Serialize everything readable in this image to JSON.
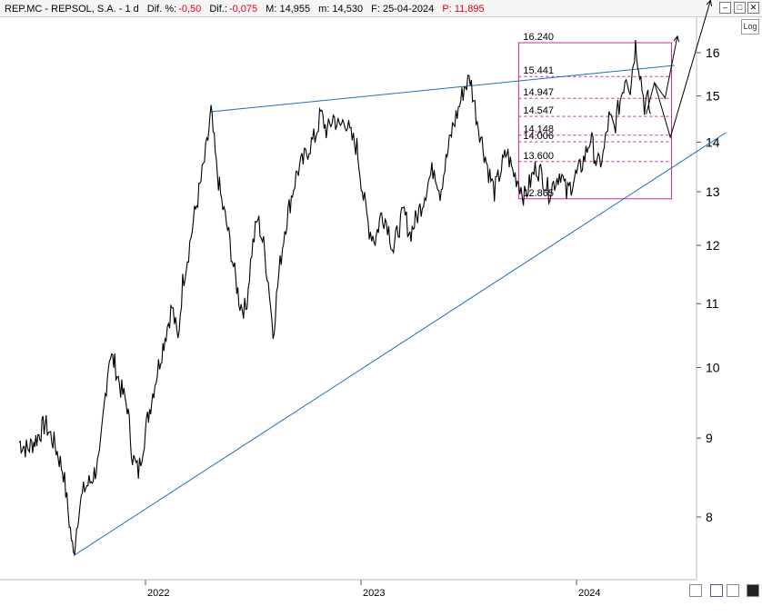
{
  "header": {
    "symbol": "REP.MC - REPSOL, S.A. - 1 d",
    "dif_pct_label": "Dif. %:",
    "dif_pct_value": "-0,50",
    "dif_label": "Dif.:",
    "dif_value": "-0,075",
    "max_label": "M: 14,955",
    "min_label": "m: 14,530",
    "date_label": "F: 25-04-2024",
    "p_label": "P: 11,895",
    "log_button": "Log"
  },
  "colors": {
    "price": "#000000",
    "trendline": "#1f6fbf",
    "fib": "#cc2a9a",
    "accent_red": "#e0001b"
  },
  "chart_data": {
    "type": "line",
    "scale": "log",
    "ylim": [
      7.45,
      16.95
    ],
    "y_ticks": [
      8,
      9,
      10,
      11,
      12,
      13,
      14,
      15,
      16
    ],
    "x_ticks": [
      "2022",
      "2023",
      "2024"
    ],
    "series": [
      {
        "values": [
          [
            "2021-06-01",
            8.95
          ],
          [
            "2021-06-15",
            8.85
          ],
          [
            "2021-07-01",
            9.0
          ],
          [
            "2021-07-15",
            9.2
          ],
          [
            "2021-08-01",
            8.9
          ],
          [
            "2021-08-15",
            8.55
          ],
          [
            "2021-08-25",
            7.95
          ],
          [
            "2021-09-01",
            7.55
          ],
          [
            "2021-09-10",
            8.1
          ],
          [
            "2021-09-20",
            8.35
          ],
          [
            "2021-10-01",
            8.45
          ],
          [
            "2021-10-15",
            8.7
          ],
          [
            "2021-10-25",
            9.6
          ],
          [
            "2021-11-01",
            10.2
          ],
          [
            "2021-11-10",
            10.05
          ],
          [
            "2021-11-20",
            9.7
          ],
          [
            "2021-12-01",
            9.45
          ],
          [
            "2021-12-10",
            8.75
          ],
          [
            "2021-12-20",
            8.55
          ],
          [
            "2022-01-01",
            9.1
          ],
          [
            "2022-01-15",
            9.7
          ],
          [
            "2022-01-25",
            10.1
          ],
          [
            "2022-02-05",
            10.55
          ],
          [
            "2022-02-15",
            10.95
          ],
          [
            "2022-02-25",
            10.4
          ],
          [
            "2022-03-05",
            11.35
          ],
          [
            "2022-03-15",
            11.9
          ],
          [
            "2022-03-25",
            12.55
          ],
          [
            "2022-04-05",
            13.2
          ],
          [
            "2022-04-15",
            13.9
          ],
          [
            "2022-04-22",
            14.65
          ],
          [
            "2022-05-01",
            13.5
          ],
          [
            "2022-05-10",
            12.8
          ],
          [
            "2022-05-20",
            12.3
          ],
          [
            "2022-06-01",
            11.5
          ],
          [
            "2022-06-10",
            11.0
          ],
          [
            "2022-06-20",
            10.9
          ],
          [
            "2022-06-30",
            11.9
          ],
          [
            "2022-07-10",
            12.5
          ],
          [
            "2022-07-20",
            12.0
          ],
          [
            "2022-07-30",
            11.2
          ],
          [
            "2022-08-05",
            10.5
          ],
          [
            "2022-08-15",
            11.5
          ],
          [
            "2022-08-25",
            12.3
          ],
          [
            "2022-09-05",
            12.9
          ],
          [
            "2022-09-15",
            13.4
          ],
          [
            "2022-09-25",
            13.6
          ],
          [
            "2022-10-05",
            13.9
          ],
          [
            "2022-10-15",
            14.1
          ],
          [
            "2022-10-25",
            14.6
          ],
          [
            "2022-11-05",
            14.2
          ],
          [
            "2022-11-15",
            14.55
          ],
          [
            "2022-11-25",
            14.3
          ],
          [
            "2022-12-05",
            14.5
          ],
          [
            "2022-12-15",
            14.1
          ],
          [
            "2022-12-25",
            13.9
          ],
          [
            "2023-01-05",
            12.9
          ],
          [
            "2023-01-15",
            12.3
          ],
          [
            "2023-01-25",
            12.1
          ],
          [
            "2023-02-05",
            12.6
          ],
          [
            "2023-02-15",
            12.4
          ],
          [
            "2023-02-25",
            11.9
          ],
          [
            "2023-03-05",
            12.3
          ],
          [
            "2023-03-15",
            12.6
          ],
          [
            "2023-03-25",
            12.2
          ],
          [
            "2023-04-05",
            12.5
          ],
          [
            "2023-04-15",
            12.8
          ],
          [
            "2023-04-25",
            13.2
          ],
          [
            "2023-05-05",
            13.5
          ],
          [
            "2023-05-15",
            13.0
          ],
          [
            "2023-05-25",
            13.6
          ],
          [
            "2023-06-05",
            14.3
          ],
          [
            "2023-06-15",
            14.7
          ],
          [
            "2023-06-25",
            15.2
          ],
          [
            "2023-07-05",
            15.4
          ],
          [
            "2023-07-15",
            14.6
          ],
          [
            "2023-07-25",
            14.0
          ],
          [
            "2023-08-05",
            13.4
          ],
          [
            "2023-08-15",
            13.0
          ],
          [
            "2023-08-25",
            13.4
          ],
          [
            "2023-09-05",
            13.8
          ],
          [
            "2023-09-15",
            13.4
          ],
          [
            "2023-09-25",
            13.2
          ],
          [
            "2023-10-05",
            12.9
          ],
          [
            "2023-10-15",
            13.2
          ],
          [
            "2023-10-25",
            13.5
          ],
          [
            "2023-11-05",
            13.3
          ],
          [
            "2023-11-15",
            13.0
          ],
          [
            "2023-11-25",
            13.2
          ],
          [
            "2023-12-05",
            13.4
          ],
          [
            "2023-12-15",
            12.95
          ],
          [
            "2023-12-25",
            13.2
          ],
          [
            "2024-01-05",
            13.4
          ],
          [
            "2024-01-15",
            13.7
          ],
          [
            "2024-01-25",
            14.1
          ],
          [
            "2024-02-05",
            13.5
          ],
          [
            "2024-02-15",
            13.7
          ],
          [
            "2024-02-25",
            14.5
          ],
          [
            "2024-03-05",
            14.3
          ],
          [
            "2024-03-15",
            14.9
          ],
          [
            "2024-03-25",
            15.5
          ],
          [
            "2024-04-01",
            15.2
          ],
          [
            "2024-04-10",
            16.2
          ],
          [
            "2024-04-17",
            15.6
          ],
          [
            "2024-04-25",
            14.8
          ],
          [
            "2024-05-01",
            14.9
          ],
          [
            "2024-05-05",
            14.6
          ]
        ]
      }
    ],
    "trendlines": [
      {
        "from": [
          "2021-09-01",
          7.55
        ],
        "to": [
          "2024-09-10",
          14.2
        ]
      },
      {
        "from": [
          "2022-04-22",
          14.65
        ],
        "to": [
          "2024-06-15",
          15.7
        ]
      }
    ],
    "fib_box": {
      "from": "2023-09-25",
      "to": "2024-06-10",
      "top": 16.24,
      "bottom": 12.865
    },
    "fib_levels": [
      {
        "label": "16.240",
        "value": 16.24
      },
      {
        "label": "15.441",
        "value": 15.441
      },
      {
        "label": "14.947",
        "value": 14.947
      },
      {
        "label": "14.547",
        "value": 14.547
      },
      {
        "label": "14.148",
        "value": 14.148
      },
      {
        "label": "14.006",
        "value": 14.006
      },
      {
        "label": "13.600",
        "value": 13.6
      },
      {
        "label": "12.865",
        "value": 12.865
      }
    ],
    "projection_arrows": [
      [
        [
          "2024-04-28",
          14.6
        ],
        [
          "2024-05-12",
          15.3
        ],
        [
          "2024-05-30",
          14.95
        ],
        [
          "2024-06-20",
          16.4
        ]
      ],
      [
        [
          "2024-05-12",
          15.3
        ],
        [
          "2024-06-08",
          14.1
        ],
        [
          "2024-08-15",
          17.3
        ]
      ]
    ]
  }
}
